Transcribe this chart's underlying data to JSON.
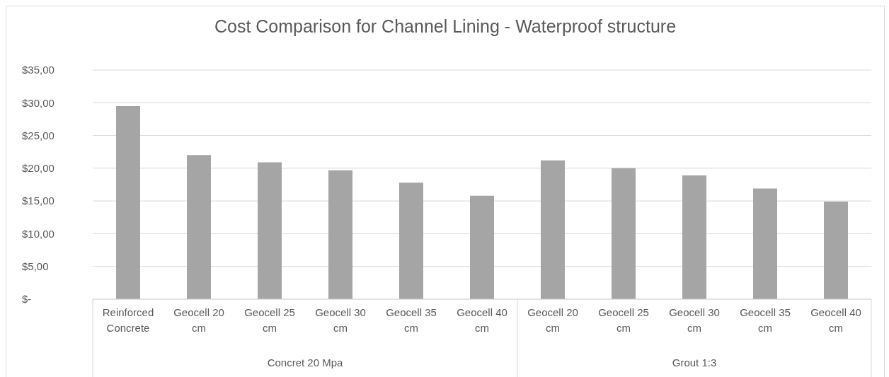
{
  "chart_data": {
    "type": "bar",
    "title": "Cost Comparison for Channel Lining - Waterproof structure",
    "categories": [
      "Reinforced Concrete",
      "Geocell 20 cm",
      "Geocell 25 cm",
      "Geocell 30 cm",
      "Geocell 35 cm",
      "Geocell 40 cm",
      "Geocell 20 cm",
      "Geocell 25 cm",
      "Geocell 30 cm",
      "Geocell 35 cm",
      "Geocell 40 cm"
    ],
    "values": [
      29.5,
      22.0,
      20.9,
      19.7,
      17.8,
      15.8,
      21.2,
      20.0,
      18.9,
      16.9,
      14.9
    ],
    "color": "#a5a5a5",
    "ylim": [
      0,
      35
    ],
    "yticks": [
      {
        "value": 0,
        "label": "$-"
      },
      {
        "value": 5,
        "label": "$5,00"
      },
      {
        "value": 10,
        "label": "$10,00"
      },
      {
        "value": 15,
        "label": "$15,00"
      },
      {
        "value": 20,
        "label": "$20,00"
      },
      {
        "value": 25,
        "label": "$25,00"
      },
      {
        "value": 30,
        "label": "$30,00"
      },
      {
        "value": 35,
        "label": "$35,00"
      }
    ],
    "grid": "y",
    "annotations": [
      "Concret 20 Mpa",
      "Grout 1:3"
    ]
  }
}
